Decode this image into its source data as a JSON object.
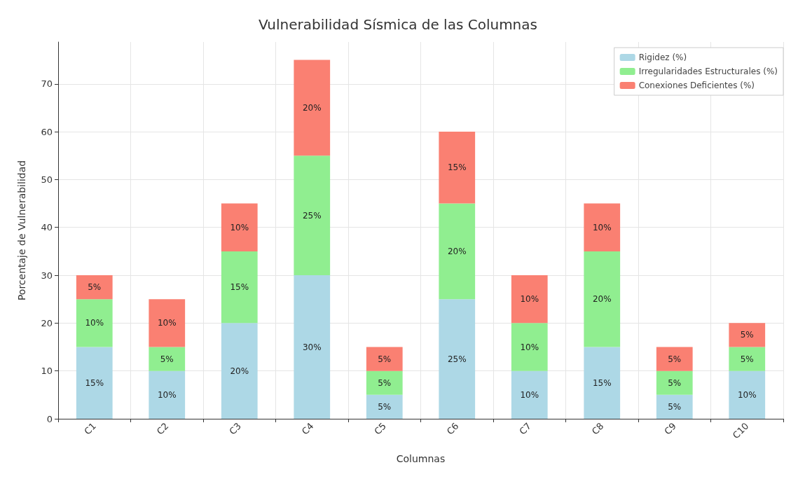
{
  "chart_data": {
    "type": "bar",
    "stacked": true,
    "title": "Vulnerabilidad Sísmica de las Columnas",
    "xlabel": "Columnas",
    "ylabel": "Porcentaje de Vulnerabilidad",
    "categories": [
      "C1",
      "C2",
      "C3",
      "C4",
      "C5",
      "C6",
      "C7",
      "C8",
      "C9",
      "C10"
    ],
    "series": [
      {
        "name": "Rigidez (%)",
        "color": "#add8e6",
        "values": [
          15,
          10,
          20,
          30,
          5,
          25,
          10,
          15,
          5,
          10
        ],
        "value_labels": [
          "15%",
          "10%",
          "20%",
          "30%",
          "5%",
          "25%",
          "10%",
          "15%",
          "5%",
          "10%"
        ]
      },
      {
        "name": "Irregularidades Estructurales (%)",
        "color": "#90ee90",
        "values": [
          10,
          5,
          15,
          25,
          5,
          20,
          10,
          20,
          5,
          5
        ],
        "value_labels": [
          "10%",
          "5%",
          "15%",
          "25%",
          "5%",
          "20%",
          "10%",
          "20%",
          "5%",
          "5%"
        ]
      },
      {
        "name": "Conexiones Deficientes (%)",
        "color": "#fa8072",
        "values": [
          5,
          10,
          10,
          20,
          5,
          15,
          10,
          10,
          5,
          5
        ],
        "value_labels": [
          "5%",
          "10%",
          "10%",
          "20%",
          "5%",
          "15%",
          "10%",
          "10%",
          "5%",
          "5%"
        ]
      }
    ],
    "ylim": [
      0,
      78.75
    ],
    "yticks": [
      0,
      10,
      20,
      30,
      40,
      50,
      60,
      70
    ],
    "grid": true,
    "legend": "top right"
  }
}
